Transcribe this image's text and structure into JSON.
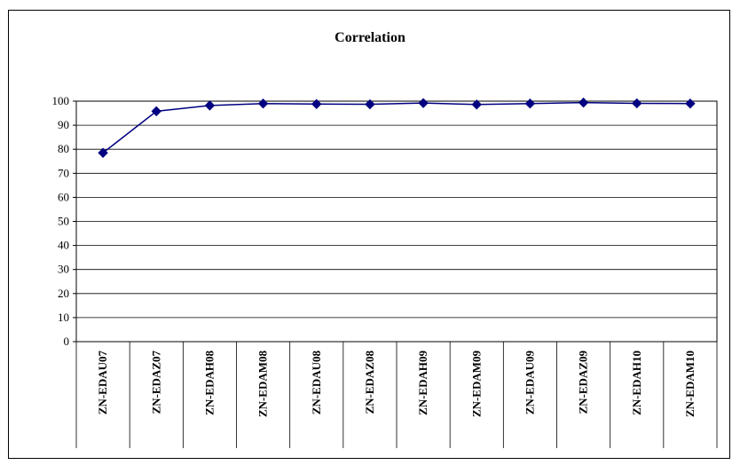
{
  "chart_data": {
    "type": "line",
    "title": "Correlation",
    "categories": [
      "ZN-EDAU07",
      "ZN-EDAZ07",
      "ZN-EDAH08",
      "ZN-EDAM08",
      "ZN-EDAU08",
      "ZN-EDAZ08",
      "ZN-EDAH09",
      "ZN-EDAM09",
      "ZN-EDAU09",
      "ZN-EDAZ09",
      "ZN-EDAH10",
      "ZN-EDAM10"
    ],
    "series": [
      {
        "values": [
          78.5,
          95.8,
          98.2,
          99.0,
          98.8,
          98.7,
          99.2,
          98.6,
          99.0,
          99.4,
          99.1,
          99.0
        ]
      }
    ],
    "ylim": [
      0,
      100
    ],
    "yticks": [
      0,
      10,
      20,
      30,
      40,
      50,
      60,
      70,
      80,
      90,
      100
    ],
    "grid": true,
    "colors": {
      "line": "#000080",
      "marker": "#000080"
    }
  }
}
